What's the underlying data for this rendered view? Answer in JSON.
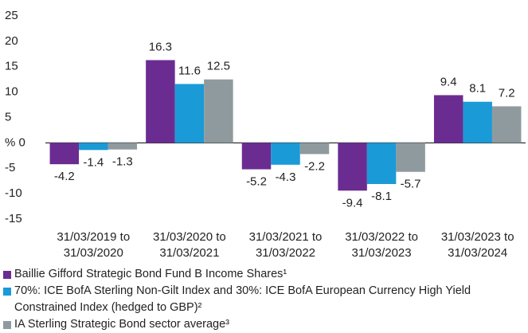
{
  "chart_data": {
    "type": "bar",
    "categories": [
      [
        "31/03/2019 to",
        "31/03/2020"
      ],
      [
        "31/03/2020 to",
        "31/03/2021"
      ],
      [
        "31/03/2021 to",
        "31/03/2022"
      ],
      [
        "31/03/2022 to",
        "31/03/2023"
      ],
      [
        "31/03/2023 to",
        "31/03/2024"
      ]
    ],
    "series": [
      {
        "name": "Baillie Gifford Strategic Bond Fund B Income Shares¹",
        "color": "#6b2c91",
        "values": [
          -4.2,
          16.3,
          -5.2,
          -9.4,
          9.4
        ]
      },
      {
        "name": "70%: ICE BofA Sterling Non-Gilt Index and 30%: ICE BofA European Currency High Yield Constrained Index (hedged to GBP)²",
        "color": "#1a9ad6",
        "values": [
          -1.4,
          11.6,
          -4.3,
          -8.1,
          8.1
        ]
      },
      {
        "name": "IA Sterling Strategic Bond sector average³",
        "color": "#8f9a9f",
        "values": [
          -1.3,
          12.5,
          -2.2,
          -5.7,
          7.2
        ]
      }
    ],
    "ylim": [
      -15,
      25
    ],
    "yticks": [
      -15,
      -10,
      -5,
      {
        "value": 0,
        "label": "% 0"
      },
      5,
      10,
      15,
      20,
      25
    ]
  }
}
